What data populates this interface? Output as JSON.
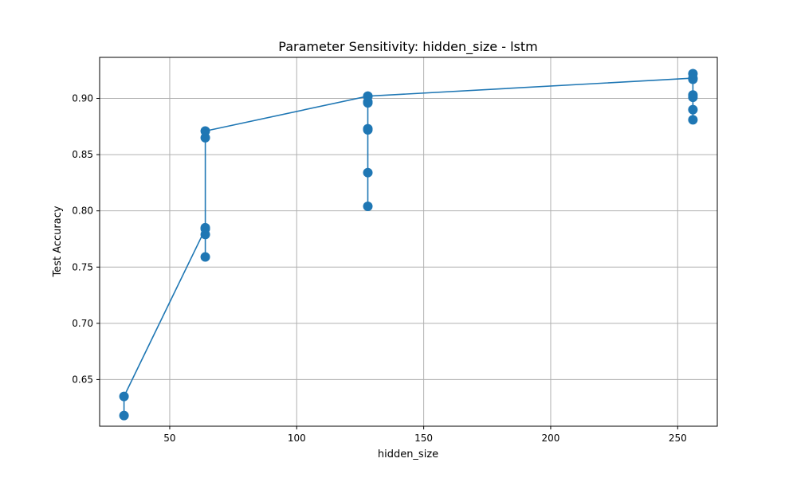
{
  "chart_data": {
    "type": "line",
    "title": "Parameter Sensitivity: hidden_size - lstm",
    "xlabel": "hidden_size",
    "ylabel": "Test Accuracy",
    "xlim": [
      22.4,
      265.6
    ],
    "ylim": [
      0.6085,
      0.9365
    ],
    "xticks": [
      50,
      100,
      150,
      200,
      250
    ],
    "yticks": [
      0.65,
      0.7,
      0.75,
      0.8,
      0.85,
      0.9
    ],
    "ytick_labels": [
      "0.65",
      "0.70",
      "0.75",
      "0.80",
      "0.85",
      "0.90"
    ],
    "grid": true,
    "series": [
      {
        "color": "#1f77b4",
        "points": [
          {
            "x": 32,
            "y": 0.618
          },
          {
            "x": 32,
            "y": 0.635
          },
          {
            "x": 64,
            "y": 0.784
          },
          {
            "x": 64,
            "y": 0.759
          },
          {
            "x": 64,
            "y": 0.779
          },
          {
            "x": 64,
            "y": 0.785
          },
          {
            "x": 64,
            "y": 0.865
          },
          {
            "x": 64,
            "y": 0.871
          },
          {
            "x": 128,
            "y": 0.902
          },
          {
            "x": 128,
            "y": 0.804
          },
          {
            "x": 128,
            "y": 0.834
          },
          {
            "x": 128,
            "y": 0.872
          },
          {
            "x": 128,
            "y": 0.873
          },
          {
            "x": 128,
            "y": 0.896
          },
          {
            "x": 128,
            "y": 0.897
          },
          {
            "x": 128,
            "y": 0.902
          },
          {
            "x": 256,
            "y": 0.918
          },
          {
            "x": 256,
            "y": 0.881
          },
          {
            "x": 256,
            "y": 0.89
          },
          {
            "x": 256,
            "y": 0.901
          },
          {
            "x": 256,
            "y": 0.903
          },
          {
            "x": 256,
            "y": 0.917
          },
          {
            "x": 256,
            "y": 0.922
          }
        ]
      }
    ]
  }
}
